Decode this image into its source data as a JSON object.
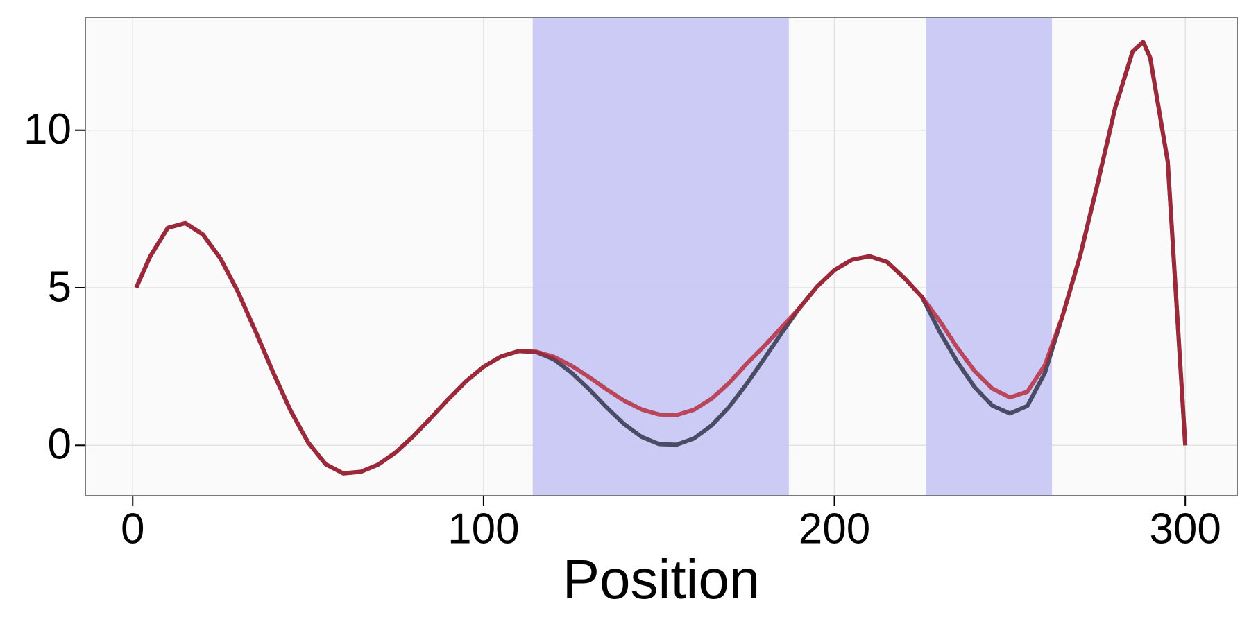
{
  "chart_data": {
    "type": "line",
    "xlabel": "Position",
    "x": [
      1,
      5,
      10,
      15,
      20,
      25,
      30,
      35,
      40,
      45,
      50,
      55,
      60,
      65,
      70,
      75,
      80,
      85,
      90,
      95,
      100,
      105,
      110,
      115,
      120,
      125,
      130,
      135,
      140,
      145,
      150,
      155,
      160,
      165,
      170,
      175,
      180,
      185,
      190,
      195,
      200,
      205,
      210,
      215,
      220,
      225,
      230,
      235,
      240,
      245,
      250,
      255,
      260,
      265,
      270,
      275,
      280,
      285,
      288,
      290,
      295,
      300
    ],
    "series": [
      {
        "color": "#4a4c66",
        "values": [
          5.0,
          6.0,
          6.9,
          7.05,
          6.69,
          5.93,
          4.87,
          3.62,
          2.32,
          1.1,
          0.09,
          -0.6,
          -0.89,
          -0.84,
          -0.61,
          -0.22,
          0.29,
          0.87,
          1.47,
          2.03,
          2.49,
          2.82,
          2.99,
          2.96,
          2.73,
          2.31,
          1.79,
          1.21,
          0.68,
          0.27,
          0.04,
          0.02,
          0.22,
          0.63,
          1.22,
          1.95,
          2.75,
          3.57,
          4.35,
          5.03,
          5.56,
          5.89,
          6.0,
          5.82,
          5.3,
          4.7,
          3.6,
          2.65,
          1.84,
          1.26,
          1.01,
          1.25,
          2.3,
          4.1,
          6.0,
          8.3,
          10.7,
          12.5,
          12.8,
          12.3,
          9.0,
          0
        ]
      },
      {
        "color": "#b3202e",
        "values": [
          5.0,
          6.0,
          6.9,
          7.05,
          6.69,
          5.93,
          4.87,
          3.62,
          2.32,
          1.1,
          0.09,
          -0.6,
          -0.89,
          -0.84,
          -0.61,
          -0.22,
          0.29,
          0.87,
          1.47,
          2.03,
          2.49,
          2.82,
          2.99,
          2.97,
          2.81,
          2.53,
          2.17,
          1.78,
          1.42,
          1.14,
          0.98,
          0.96,
          1.13,
          1.48,
          1.98,
          2.59,
          3.15,
          3.75,
          4.35,
          5.03,
          5.56,
          5.89,
          6.0,
          5.82,
          5.3,
          4.7,
          3.95,
          3.1,
          2.35,
          1.8,
          1.52,
          1.7,
          2.55,
          4.1,
          6.0,
          8.3,
          10.7,
          12.5,
          12.8,
          12.3,
          9.0,
          0
        ]
      }
    ],
    "regions": [
      [
        114,
        187
      ],
      [
        226,
        262
      ]
    ],
    "region_color": "#c8c8f6",
    "xlim": [
      -13.5,
      314.8
    ],
    "ylim": [
      -1.6,
      13.58
    ],
    "xticks": [
      0,
      100,
      200,
      300
    ],
    "yticks": [
      0,
      5,
      10
    ],
    "grid": true
  }
}
